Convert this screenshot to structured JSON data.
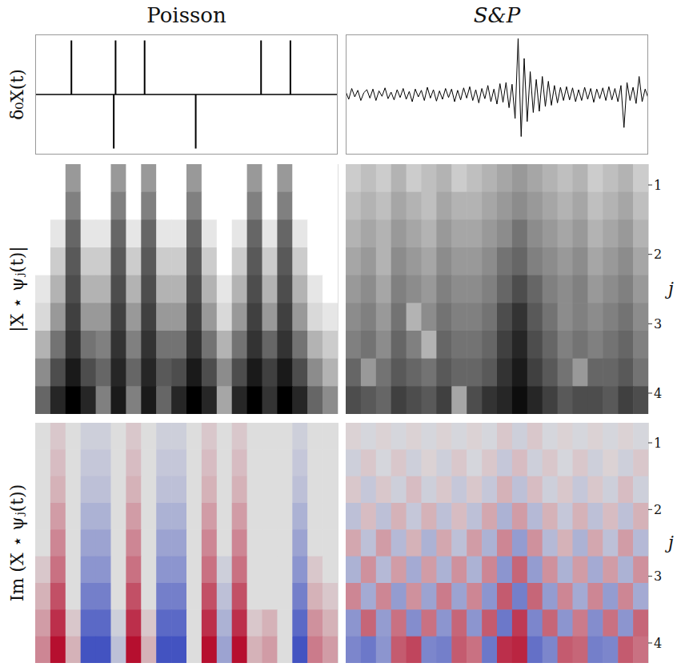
{
  "chart_data": [
    {
      "type": "stem",
      "title": "Poisson",
      "ylabel": "δ₀X(t)",
      "xlim": [
        0,
        1
      ],
      "ylim": [
        -1,
        1
      ],
      "tick_labels": false,
      "color": "#000000",
      "x": [
        0.12,
        0.26,
        0.266,
        0.362,
        0.531,
        0.747,
        0.844
      ],
      "values": [
        0.9,
        -0.9,
        0.9,
        0.9,
        -0.9,
        0.9,
        0.9
      ]
    },
    {
      "type": "line",
      "title": "S&P",
      "xlim": [
        0,
        1
      ],
      "ylim": [
        -1,
        1
      ],
      "tick_labels": false,
      "color": "#000000",
      "x": [
        0,
        0.01,
        0.02,
        0.03,
        0.04,
        0.05,
        0.06,
        0.07,
        0.08,
        0.09,
        0.1,
        0.11,
        0.12,
        0.13,
        0.14,
        0.15,
        0.16,
        0.17,
        0.18,
        0.19,
        0.2,
        0.21,
        0.22,
        0.23,
        0.24,
        0.25,
        0.26,
        0.27,
        0.28,
        0.29,
        0.3,
        0.31,
        0.32,
        0.33,
        0.34,
        0.35,
        0.36,
        0.37,
        0.38,
        0.39,
        0.4,
        0.41,
        0.42,
        0.43,
        0.44,
        0.45,
        0.46,
        0.47,
        0.48,
        0.49,
        0.5,
        0.51,
        0.52,
        0.53,
        0.54,
        0.55,
        0.56,
        0.57,
        0.58,
        0.59,
        0.6,
        0.61,
        0.62,
        0.63,
        0.64,
        0.65,
        0.66,
        0.67,
        0.68,
        0.69,
        0.7,
        0.71,
        0.72,
        0.73,
        0.74,
        0.75,
        0.76,
        0.77,
        0.78,
        0.79,
        0.8,
        0.81,
        0.82,
        0.83,
        0.84,
        0.85,
        0.86,
        0.87,
        0.88,
        0.89,
        0.9,
        0.91,
        0.92,
        0.93,
        0.94,
        0.95,
        0.96,
        0.97,
        0.98,
        0.99,
        1
      ],
      "values": [
        0.05,
        -0.08,
        0.1,
        -0.04,
        0.07,
        -0.1,
        0.03,
        0.08,
        -0.06,
        0.09,
        -0.1,
        0.06,
        -0.03,
        0.11,
        -0.07,
        0.04,
        -0.09,
        0.08,
        -0.05,
        0.1,
        -0.08,
        0.05,
        -0.12,
        0.09,
        -0.04,
        0.07,
        -0.1,
        0.12,
        -0.06,
        0.08,
        -0.11,
        0.06,
        -0.08,
        0.1,
        -0.05,
        0.09,
        -0.12,
        0.07,
        -0.09,
        0.11,
        -0.06,
        0.13,
        -0.1,
        0.08,
        -0.14,
        0.1,
        -0.07,
        0.15,
        -0.12,
        0.09,
        -0.16,
        0.18,
        -0.13,
        0.2,
        -0.22,
        0.17,
        -0.4,
        0.93,
        -0.7,
        0.6,
        -0.45,
        0.38,
        -0.3,
        0.25,
        -0.28,
        0.3,
        -0.2,
        0.22,
        -0.18,
        0.15,
        -0.14,
        0.12,
        -0.1,
        0.13,
        -0.09,
        0.11,
        -0.12,
        0.08,
        -0.1,
        0.12,
        -0.08,
        0.1,
        -0.13,
        0.09,
        -0.07,
        0.11,
        -0.1,
        0.13,
        -0.09,
        0.1,
        -0.12,
        0.15,
        -0.55,
        0.2,
        -0.1,
        0.12,
        -0.15,
        0.3,
        -0.12,
        0.09,
        -0.06
      ]
    },
    {
      "type": "heatmap",
      "ylabel": "|X ⋆ ψⱼ(t)|",
      "xlim": [
        0,
        1
      ],
      "ylim": [
        0.7,
        4.3
      ],
      "yticks": [
        1,
        2,
        3,
        4
      ],
      "tick_labels": false,
      "color": "Greys",
      "zlim": [
        0,
        1
      ],
      "x": [
        0.025,
        0.075,
        0.125,
        0.175,
        0.225,
        0.275,
        0.325,
        0.375,
        0.425,
        0.475,
        0.525,
        0.575,
        0.625,
        0.675,
        0.725,
        0.775,
        0.825,
        0.875,
        0.925,
        0.975
      ],
      "y": [
        0.9,
        1.3,
        1.7,
        2.1,
        2.5,
        2.9,
        3.3,
        3.7,
        4.1
      ],
      "cells": [
        [
          0,
          0,
          0.4,
          0,
          0,
          0.4,
          0,
          0.4,
          0,
          0,
          0.4,
          0,
          0,
          0,
          0.4,
          0,
          0.4,
          0,
          0,
          0
        ],
        [
          0,
          0,
          0.5,
          0,
          0,
          0.5,
          0,
          0.5,
          0,
          0,
          0.5,
          0,
          0,
          0,
          0.5,
          0,
          0.5,
          0,
          0,
          0
        ],
        [
          0,
          0.1,
          0.6,
          0.1,
          0.1,
          0.6,
          0.1,
          0.6,
          0.1,
          0.1,
          0.6,
          0.1,
          0,
          0.1,
          0.6,
          0.1,
          0.6,
          0.1,
          0,
          0
        ],
        [
          0,
          0.2,
          0.65,
          0.2,
          0.2,
          0.65,
          0.2,
          0.65,
          0.2,
          0.2,
          0.65,
          0.2,
          0,
          0.2,
          0.65,
          0.2,
          0.65,
          0.2,
          0,
          0
        ],
        [
          0.1,
          0.3,
          0.7,
          0.3,
          0.3,
          0.7,
          0.3,
          0.7,
          0.3,
          0.3,
          0.7,
          0.3,
          0.1,
          0.3,
          0.7,
          0.3,
          0.7,
          0.3,
          0.1,
          0
        ],
        [
          0.15,
          0.4,
          0.75,
          0.4,
          0.4,
          0.75,
          0.4,
          0.75,
          0.4,
          0.4,
          0.75,
          0.4,
          0.15,
          0.4,
          0.75,
          0.4,
          0.75,
          0.4,
          0.15,
          0.1
        ],
        [
          0.3,
          0.55,
          0.8,
          0.55,
          0.5,
          0.8,
          0.5,
          0.8,
          0.55,
          0.55,
          0.8,
          0.55,
          0.3,
          0.55,
          0.8,
          0.6,
          0.8,
          0.55,
          0.3,
          0.2
        ],
        [
          0.45,
          0.7,
          0.9,
          0.7,
          0.6,
          0.85,
          0.6,
          0.85,
          0.65,
          0.7,
          0.9,
          0.7,
          0.45,
          0.7,
          0.9,
          0.75,
          0.9,
          0.7,
          0.45,
          0.3
        ],
        [
          0.6,
          0.85,
          1.0,
          0.85,
          0.5,
          0.9,
          0.5,
          0.9,
          0.6,
          0.85,
          1.0,
          0.85,
          0.35,
          0.85,
          1.0,
          0.8,
          1.0,
          0.85,
          0.6,
          0.45
        ]
      ]
    },
    {
      "type": "heatmap",
      "ylabel": "j",
      "xlim": [
        0,
        1
      ],
      "ylim": [
        0.7,
        4.3
      ],
      "yticks": [
        1,
        2,
        3,
        4
      ],
      "tick_labels": "y",
      "color": "Greys",
      "zlim": [
        0,
        1
      ],
      "x": [
        0.025,
        0.075,
        0.125,
        0.175,
        0.225,
        0.275,
        0.325,
        0.375,
        0.425,
        0.475,
        0.525,
        0.575,
        0.625,
        0.675,
        0.725,
        0.775,
        0.825,
        0.875,
        0.925,
        0.975
      ],
      "y": [
        0.9,
        1.3,
        1.7,
        2.1,
        2.5,
        2.9,
        3.3,
        3.7,
        4.1
      ],
      "cells": [
        [
          0.2,
          0.25,
          0.2,
          0.3,
          0.2,
          0.25,
          0.3,
          0.2,
          0.25,
          0.3,
          0.35,
          0.4,
          0.35,
          0.3,
          0.25,
          0.3,
          0.2,
          0.25,
          0.3,
          0.2
        ],
        [
          0.25,
          0.3,
          0.25,
          0.35,
          0.3,
          0.25,
          0.35,
          0.3,
          0.3,
          0.35,
          0.4,
          0.45,
          0.4,
          0.35,
          0.3,
          0.35,
          0.25,
          0.3,
          0.35,
          0.25
        ],
        [
          0.3,
          0.35,
          0.3,
          0.4,
          0.35,
          0.3,
          0.4,
          0.35,
          0.35,
          0.4,
          0.45,
          0.55,
          0.45,
          0.4,
          0.35,
          0.4,
          0.3,
          0.35,
          0.4,
          0.3
        ],
        [
          0.35,
          0.4,
          0.3,
          0.45,
          0.4,
          0.35,
          0.45,
          0.4,
          0.4,
          0.45,
          0.55,
          0.6,
          0.5,
          0.45,
          0.4,
          0.45,
          0.35,
          0.4,
          0.45,
          0.35
        ],
        [
          0.4,
          0.45,
          0.35,
          0.5,
          0.45,
          0.4,
          0.5,
          0.45,
          0.45,
          0.5,
          0.6,
          0.7,
          0.6,
          0.5,
          0.45,
          0.5,
          0.4,
          0.45,
          0.5,
          0.4
        ],
        [
          0.45,
          0.5,
          0.4,
          0.55,
          0.3,
          0.45,
          0.55,
          0.5,
          0.5,
          0.55,
          0.7,
          0.8,
          0.65,
          0.55,
          0.45,
          0.5,
          0.45,
          0.5,
          0.55,
          0.45
        ],
        [
          0.5,
          0.55,
          0.45,
          0.6,
          0.5,
          0.3,
          0.6,
          0.55,
          0.55,
          0.6,
          0.75,
          0.85,
          0.7,
          0.6,
          0.5,
          0.55,
          0.5,
          0.55,
          0.6,
          0.5
        ],
        [
          0.6,
          0.4,
          0.55,
          0.65,
          0.6,
          0.55,
          0.65,
          0.6,
          0.6,
          0.65,
          0.8,
          0.9,
          0.75,
          0.65,
          0.55,
          0.4,
          0.6,
          0.6,
          0.65,
          0.55
        ],
        [
          0.7,
          0.65,
          0.6,
          0.75,
          0.7,
          0.65,
          0.75,
          0.35,
          0.7,
          0.8,
          0.85,
          0.95,
          0.85,
          0.75,
          0.65,
          0.7,
          0.7,
          0.65,
          0.75,
          0.7
        ]
      ]
    },
    {
      "type": "heatmap",
      "ylabel": "Im (X ⋆ ψⱼ(t))",
      "xlim": [
        0,
        1
      ],
      "ylim": [
        0.7,
        4.3
      ],
      "yticks": [
        1,
        2,
        3,
        4
      ],
      "tick_labels": false,
      "color": "coolwarm",
      "zlim": [
        -1,
        1
      ],
      "x": [
        0.025,
        0.075,
        0.125,
        0.175,
        0.225,
        0.275,
        0.325,
        0.375,
        0.425,
        0.475,
        0.525,
        0.575,
        0.625,
        0.675,
        0.725,
        0.775,
        0.825,
        0.875,
        0.925,
        0.975
      ],
      "y": [
        0.9,
        1.3,
        1.7,
        2.1,
        2.5,
        2.9,
        3.3,
        3.7,
        4.1
      ],
      "cells": [
        [
          0,
          0.1,
          0,
          -0.1,
          -0.1,
          0,
          0.1,
          0,
          -0.1,
          -0.1,
          0,
          0.1,
          0,
          0.1,
          0,
          0,
          0,
          -0.1,
          0,
          0
        ],
        [
          0,
          0.15,
          0,
          -0.15,
          -0.15,
          0,
          0.15,
          0,
          -0.15,
          -0.15,
          0,
          0.15,
          0,
          0.15,
          0,
          0,
          0,
          -0.15,
          0,
          0
        ],
        [
          0,
          0.2,
          0,
          -0.2,
          -0.2,
          0,
          0.2,
          0,
          -0.2,
          -0.2,
          0,
          0.2,
          0,
          0.2,
          0,
          0,
          0,
          -0.2,
          0,
          0
        ],
        [
          0,
          0.3,
          0,
          -0.3,
          -0.3,
          0,
          0.3,
          0,
          -0.3,
          -0.3,
          0,
          0.3,
          0,
          0.3,
          0,
          0,
          0,
          -0.3,
          0,
          0
        ],
        [
          0,
          0.4,
          0,
          -0.4,
          -0.4,
          0,
          0.4,
          0,
          -0.4,
          -0.4,
          0,
          0.4,
          0,
          0.4,
          0,
          0,
          0,
          -0.4,
          0,
          0
        ],
        [
          0.1,
          0.5,
          0,
          -0.5,
          -0.5,
          0,
          0.5,
          0,
          -0.5,
          -0.5,
          0,
          0.5,
          -0.1,
          0.5,
          0,
          0,
          0,
          -0.5,
          0.1,
          0
        ],
        [
          0.2,
          0.65,
          0,
          -0.65,
          -0.65,
          0,
          0.65,
          0,
          -0.65,
          -0.65,
          0,
          0.65,
          -0.2,
          0.65,
          0,
          0,
          0,
          -0.65,
          0.2,
          0.1
        ],
        [
          0.3,
          0.8,
          0.1,
          -0.8,
          -0.8,
          -0.1,
          0.8,
          0.1,
          -0.8,
          -0.8,
          0,
          0.8,
          -0.3,
          0.8,
          0.1,
          0.2,
          0,
          -0.8,
          0.35,
          0.2
        ],
        [
          0.4,
          0.95,
          0.2,
          -0.95,
          -0.95,
          -0.2,
          0.95,
          0.2,
          -0.95,
          -0.95,
          0,
          0.95,
          -0.4,
          0.95,
          0.2,
          0.3,
          0,
          -0.95,
          0.45,
          0.3
        ]
      ]
    },
    {
      "type": "heatmap",
      "ylabel": "j",
      "xlim": [
        0,
        1
      ],
      "ylim": [
        0.7,
        4.3
      ],
      "yticks": [
        1,
        2,
        3,
        4
      ],
      "tick_labels": "y",
      "color": "coolwarm",
      "zlim": [
        -1,
        1
      ],
      "x": [
        0.025,
        0.075,
        0.125,
        0.175,
        0.225,
        0.275,
        0.325,
        0.375,
        0.425,
        0.475,
        0.525,
        0.575,
        0.625,
        0.675,
        0.725,
        0.775,
        0.825,
        0.875,
        0.925,
        0.975
      ],
      "y": [
        0.9,
        1.3,
        1.7,
        2.1,
        2.5,
        2.9,
        3.3,
        3.7,
        4.1
      ],
      "cells": [
        [
          0.05,
          -0.05,
          0.05,
          -0.05,
          0.05,
          -0.05,
          0.05,
          -0.05,
          0.05,
          -0.05,
          0.1,
          -0.1,
          0.1,
          -0.05,
          0.05,
          -0.05,
          0.05,
          -0.05,
          0.05,
          -0.05
        ],
        [
          -0.1,
          0.1,
          -0.05,
          0.1,
          -0.1,
          0.05,
          -0.1,
          0.1,
          -0.05,
          0.1,
          -0.15,
          0.15,
          -0.1,
          0.1,
          -0.05,
          0.1,
          -0.1,
          0.05,
          -0.1,
          0.1
        ],
        [
          0.1,
          -0.15,
          0.1,
          -0.1,
          0.15,
          -0.1,
          0.1,
          -0.15,
          0.1,
          -0.15,
          0.2,
          -0.2,
          0.15,
          -0.1,
          0.1,
          -0.15,
          0.1,
          -0.1,
          0.15,
          -0.1
        ],
        [
          -0.2,
          0.15,
          -0.2,
          0.2,
          -0.15,
          0.2,
          -0.2,
          0.15,
          -0.2,
          0.25,
          -0.3,
          0.3,
          -0.25,
          0.2,
          -0.15,
          0.2,
          -0.2,
          0.15,
          -0.2,
          0.2
        ],
        [
          0.25,
          -0.2,
          0.3,
          -0.25,
          0.2,
          -0.3,
          0.25,
          -0.2,
          0.3,
          -0.3,
          0.4,
          -0.45,
          0.35,
          -0.25,
          0.2,
          -0.3,
          0.25,
          -0.2,
          0.3,
          -0.25
        ],
        [
          -0.3,
          0.35,
          -0.25,
          0.3,
          -0.35,
          0.3,
          -0.3,
          0.35,
          -0.3,
          0.4,
          -0.5,
          0.55,
          -0.45,
          0.35,
          -0.3,
          0.3,
          -0.35,
          0.3,
          -0.3,
          0.35
        ],
        [
          0.4,
          -0.35,
          0.4,
          -0.45,
          0.35,
          -0.4,
          0.45,
          -0.4,
          0.4,
          -0.5,
          0.6,
          -0.65,
          0.55,
          -0.45,
          0.4,
          -0.35,
          0.4,
          -0.45,
          0.4,
          -0.35
        ],
        [
          -0.5,
          0.55,
          -0.45,
          0.5,
          -0.55,
          0.5,
          -0.5,
          0.55,
          -0.5,
          0.6,
          -0.7,
          0.75,
          -0.6,
          0.55,
          -0.5,
          0.45,
          -0.55,
          0.5,
          -0.5,
          0.55
        ],
        [
          -0.6,
          -0.7,
          -0.5,
          0.6,
          0.7,
          -0.6,
          -0.65,
          0.6,
          0.5,
          -0.7,
          0.8,
          0.85,
          -0.75,
          -0.6,
          0.6,
          0.55,
          -0.65,
          -0.6,
          0.6,
          0.5
        ]
      ]
    }
  ]
}
